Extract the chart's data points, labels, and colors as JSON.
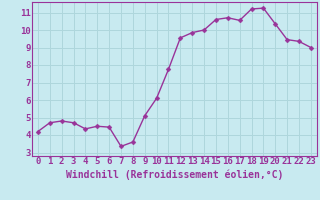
{
  "x": [
    0,
    1,
    2,
    3,
    4,
    5,
    6,
    7,
    8,
    9,
    10,
    11,
    12,
    13,
    14,
    15,
    16,
    17,
    18,
    19,
    20,
    21,
    22,
    23
  ],
  "y": [
    4.2,
    4.7,
    4.8,
    4.7,
    4.35,
    4.5,
    4.45,
    3.35,
    3.6,
    5.1,
    6.1,
    7.75,
    9.55,
    9.85,
    10.0,
    10.6,
    10.7,
    10.55,
    11.2,
    11.25,
    10.35,
    9.45,
    9.35,
    9.0
  ],
  "line_color": "#993399",
  "marker": "D",
  "marker_size": 2.5,
  "line_width": 1.0,
  "xlabel": "Windchill (Refroidissement éolien,°C)",
  "xlim": [
    -0.5,
    23.5
  ],
  "ylim": [
    2.8,
    11.6
  ],
  "yticks": [
    3,
    4,
    5,
    6,
    7,
    8,
    9,
    10,
    11
  ],
  "xticks": [
    0,
    1,
    2,
    3,
    4,
    5,
    6,
    7,
    8,
    9,
    10,
    11,
    12,
    13,
    14,
    15,
    16,
    17,
    18,
    19,
    20,
    21,
    22,
    23
  ],
  "background_color": "#c8eaf0",
  "grid_color": "#aed6dc",
  "tick_label_color": "#993399",
  "axis_color": "#993399",
  "xlabel_color": "#993399",
  "xlabel_fontsize": 7.0,
  "tick_fontsize": 6.5,
  "label_fontweight": "bold"
}
